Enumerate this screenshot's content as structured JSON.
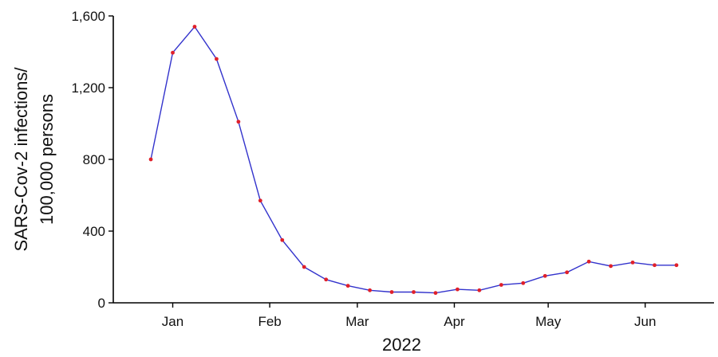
{
  "chart_data": {
    "type": "line",
    "title": "",
    "xlabel": "2022",
    "ylabel_lines": [
      "SARS-Cov-2 infections/",
      "100,000 persons"
    ],
    "ylim": [
      0,
      1600
    ],
    "y_ticks": [
      0,
      400,
      800,
      1200,
      1600
    ],
    "y_tick_labels": [
      "0",
      "400",
      "800",
      "1,200",
      "1,600"
    ],
    "x_ticks": [
      "2022-01-01",
      "2022-02-01",
      "2022-03-01",
      "2022-04-01",
      "2022-05-01",
      "2022-06-01"
    ],
    "x_tick_labels": [
      "Jan",
      "Feb",
      "Mar",
      "Apr",
      "May",
      "Jun"
    ],
    "xlim": [
      "2021-12-13",
      "2022-06-23"
    ],
    "grid": false,
    "legend": "none",
    "line_color": "#3333cc",
    "marker_color": "#e0202a",
    "series": [
      {
        "x": [
          "2021-12-25",
          "2022-01-01",
          "2022-01-08",
          "2022-01-15",
          "2022-01-22",
          "2022-01-29",
          "2022-02-05",
          "2022-02-12",
          "2022-02-19",
          "2022-02-26",
          "2022-03-05",
          "2022-03-12",
          "2022-03-19",
          "2022-03-26",
          "2022-04-02",
          "2022-04-09",
          "2022-04-16",
          "2022-04-23",
          "2022-04-30",
          "2022-05-07",
          "2022-05-14",
          "2022-05-21",
          "2022-05-28",
          "2022-06-04",
          "2022-06-11"
        ],
        "values": [
          800,
          1395,
          1540,
          1360,
          1010,
          570,
          350,
          200,
          130,
          95,
          70,
          60,
          60,
          55,
          75,
          70,
          100,
          110,
          150,
          170,
          230,
          205,
          225,
          210,
          210
        ]
      }
    ]
  }
}
